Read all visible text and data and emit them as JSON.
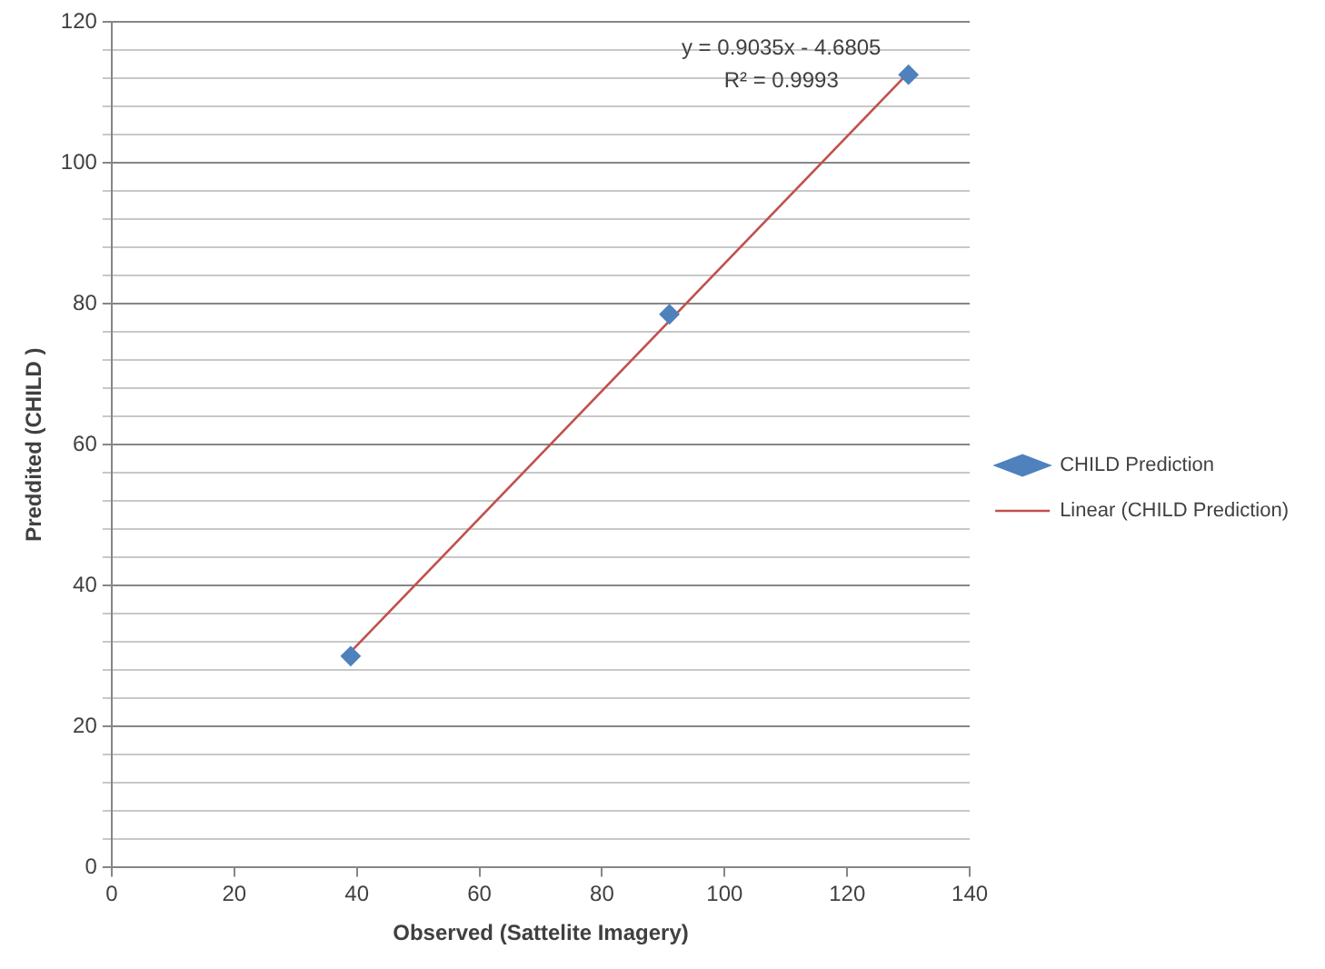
{
  "chart_data": {
    "type": "scatter",
    "xlabel": "Observed (Sattelite Imagery)",
    "ylabel": "Preddited (CHILD )",
    "series": [
      {
        "name": "CHILD Prediction",
        "type": "scatter",
        "color": "#4f81bd",
        "x": [
          39,
          91,
          130
        ],
        "values": [
          30,
          78.5,
          112.5
        ],
        "marker": "diamond"
      },
      {
        "name": "Linear (CHILD Prediction)",
        "type": "line",
        "color": "#c0504d",
        "x": [
          39,
          130
        ],
        "values": [
          30.6,
          112.8
        ],
        "marker": "none",
        "line_style": "solid"
      }
    ],
    "xlim": [
      0,
      140
    ],
    "xticks": [
      0,
      20,
      40,
      60,
      80,
      100,
      120,
      140
    ],
    "ylim": [
      0,
      120
    ],
    "yticks": [
      0,
      {
        "value": 4,
        "label": null
      },
      {
        "value": 8,
        "label": null
      },
      {
        "value": 12,
        "label": null
      },
      {
        "value": 16,
        "label": null
      },
      20,
      {
        "value": 24,
        "label": null
      },
      {
        "value": 28,
        "label": null
      },
      {
        "value": 32,
        "label": null
      },
      {
        "value": 36,
        "label": null
      },
      40,
      {
        "value": 44,
        "label": null
      },
      {
        "value": 48,
        "label": null
      },
      {
        "value": 52,
        "label": null
      },
      {
        "value": 56,
        "label": null
      },
      60,
      {
        "value": 64,
        "label": null
      },
      {
        "value": 68,
        "label": null
      },
      {
        "value": 72,
        "label": null
      },
      {
        "value": 76,
        "label": null
      },
      80,
      {
        "value": 84,
        "label": null
      },
      {
        "value": 88,
        "label": null
      },
      {
        "value": 92,
        "label": null
      },
      {
        "value": 96,
        "label": null
      },
      100,
      {
        "value": 104,
        "label": null
      },
      {
        "value": 108,
        "label": null
      },
      {
        "value": 112,
        "label": null
      },
      {
        "value": 116,
        "label": null
      },
      120
    ],
    "grid": "y",
    "legend": "right",
    "annotations": [
      "y = 0.9035x - 4.6805",
      "R² = 0.9993"
    ]
  }
}
